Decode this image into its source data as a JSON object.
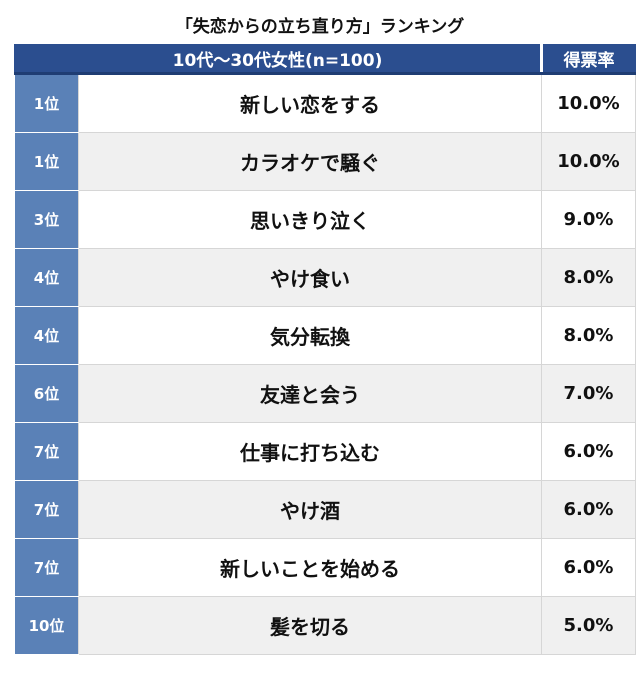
{
  "title": "「失恋からの立ち直り方」ランキング",
  "header": {
    "group_label": "10代〜30代女性(n=100)",
    "rate_label": "得票率"
  },
  "chart_data": {
    "type": "table",
    "title": "「失恋からの立ち直り方」ランキング",
    "columns": [
      "",
      "10代〜30代女性(n=100)",
      "得票率"
    ],
    "rows": [
      {
        "rank": "1位",
        "label": "新しい恋をする",
        "rate": "10.0%",
        "value": 10.0
      },
      {
        "rank": "1位",
        "label": "カラオケで騒ぐ",
        "rate": "10.0%",
        "value": 10.0
      },
      {
        "rank": "3位",
        "label": "思いきり泣く",
        "rate": "9.0%",
        "value": 9.0
      },
      {
        "rank": "4位",
        "label": "やけ食い",
        "rate": "8.0%",
        "value": 8.0
      },
      {
        "rank": "4位",
        "label": "気分転換",
        "rate": "8.0%",
        "value": 8.0
      },
      {
        "rank": "6位",
        "label": "友達と会う",
        "rate": "7.0%",
        "value": 7.0
      },
      {
        "rank": "7位",
        "label": "仕事に打ち込む",
        "rate": "6.0%",
        "value": 6.0
      },
      {
        "rank": "7位",
        "label": "やけ酒",
        "rate": "6.0%",
        "value": 6.0
      },
      {
        "rank": "7位",
        "label": "新しいことを始める",
        "rate": "6.0%",
        "value": 6.0
      },
      {
        "rank": "10位",
        "label": "髪を切る",
        "rate": "5.0%",
        "value": 5.0
      }
    ]
  }
}
